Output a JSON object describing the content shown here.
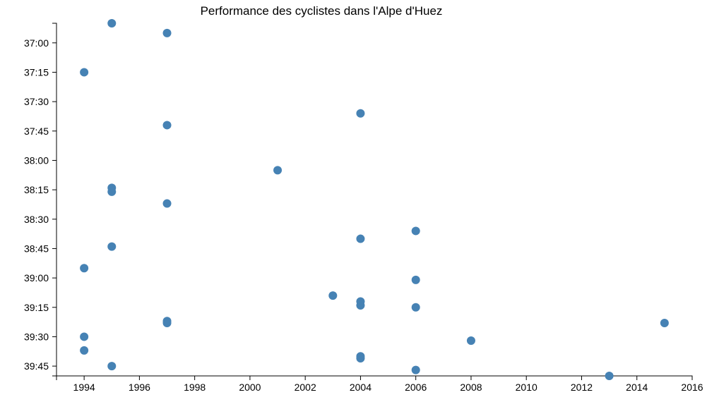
{
  "chart_data": {
    "type": "scatter",
    "title": "Performance des cyclistes dans l'Alpe d'Huez",
    "xlabel": "",
    "ylabel": "",
    "grid": false,
    "legend": "none",
    "x_axis": {
      "min": 1993,
      "max": 2016,
      "ticks": [
        1994,
        1996,
        1998,
        2000,
        2002,
        2004,
        2006,
        2008,
        2010,
        2012,
        2014,
        2016
      ],
      "tick_labels": [
        "1994",
        "1996",
        "1998",
        "2000",
        "2002",
        "2004",
        "2006",
        "2008",
        "2010",
        "2012",
        "2014",
        "2016"
      ]
    },
    "y_axis": {
      "min": "36:50",
      "max": "39:50",
      "reversed": true,
      "ticks": [
        "37:00",
        "37:15",
        "37:30",
        "37:45",
        "38:00",
        "38:15",
        "38:30",
        "38:45",
        "39:00",
        "39:15",
        "39:30",
        "39:45"
      ]
    },
    "series": [
      {
        "color": "#4682b4",
        "points": [
          {
            "x": 1995,
            "y": "36:50"
          },
          {
            "x": 1997,
            "y": "36:55"
          },
          {
            "x": 1994,
            "y": "37:15"
          },
          {
            "x": 2004,
            "y": "37:36"
          },
          {
            "x": 1997,
            "y": "37:42"
          },
          {
            "x": 2001,
            "y": "38:05"
          },
          {
            "x": 1995,
            "y": "38:14"
          },
          {
            "x": 1995,
            "y": "38:16"
          },
          {
            "x": 1997,
            "y": "38:22"
          },
          {
            "x": 2006,
            "y": "38:36"
          },
          {
            "x": 2004,
            "y": "38:40"
          },
          {
            "x": 1995,
            "y": "38:44"
          },
          {
            "x": 1994,
            "y": "38:55"
          },
          {
            "x": 2006,
            "y": "39:01"
          },
          {
            "x": 2003,
            "y": "39:09"
          },
          {
            "x": 2004,
            "y": "39:12"
          },
          {
            "x": 2004,
            "y": "39:14"
          },
          {
            "x": 2006,
            "y": "39:15"
          },
          {
            "x": 1997,
            "y": "39:22"
          },
          {
            "x": 1997,
            "y": "39:23"
          },
          {
            "x": 2015,
            "y": "39:23"
          },
          {
            "x": 1994,
            "y": "39:30"
          },
          {
            "x": 2008,
            "y": "39:32"
          },
          {
            "x": 1994,
            "y": "39:37"
          },
          {
            "x": 2004,
            "y": "39:40"
          },
          {
            "x": 2004,
            "y": "39:41"
          },
          {
            "x": 1995,
            "y": "39:45"
          },
          {
            "x": 2006,
            "y": "39:47"
          },
          {
            "x": 2013,
            "y": "39:50"
          }
        ]
      }
    ]
  }
}
